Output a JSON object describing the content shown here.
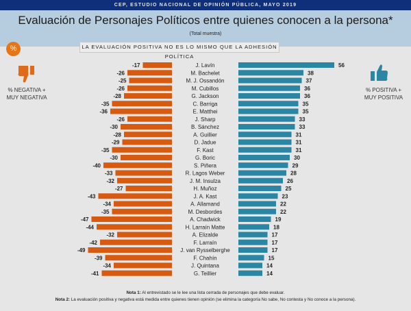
{
  "header": {
    "source": "CEP, ESTUDIO NACIONAL DE OPINIÓN PÚBLICA, MAYO 2019",
    "title": "Evaluación de Personajes Políticos entre quienes conocen a la persona*",
    "subtitle": "(Total muestra)",
    "banner": "LA EVALUACIÓN POSITIVA NO ES LO MISMO QUE LA ADHESIÓN POLÍTICA",
    "badge": "%"
  },
  "legend": {
    "negative_line1": "% NEGATIVA +",
    "negative_line2": "MUY NEGATIVA",
    "positive_line1": "% POSITIVA +",
    "positive_line2": "MUY POSITIVA",
    "negative_icon": "thumbs-down-icon",
    "positive_icon": "thumbs-up-icon"
  },
  "notes": {
    "note1_label": "Nota 1:",
    "note1_text": " Al entrevistado se le lee una lista cerrada de personajes que debe evaluar.",
    "note2_label": "Nota 2:",
    "note2_text": " La evaluación positiva y negativa está medida entre quienes tienen opinión (se elimina la categoría No sabe, No contesta y No conoce a la persona)."
  },
  "colors": {
    "negative": "#d65a10",
    "positive": "#2b86a4",
    "header_bar": "#0f2f7a",
    "header_bg": "#b6cde0"
  },
  "chart_data": {
    "type": "bar",
    "orientation": "horizontal-diverging",
    "title": "Evaluación de Personajes Políticos entre quienes conocen a la persona*",
    "categories": [
      "J. Lavín",
      "M. Bachelet",
      "M. J. Ossandón",
      "M. Cubillos",
      "G. Jackson",
      "C. Barriga",
      "E. Matthei",
      "J. Sharp",
      "B. Sánchez",
      "A. Guillier",
      "D. Jadue",
      "F. Kast",
      "G. Boric",
      "S. Piñera",
      "R. Lagos Weber",
      "J. M. Insulza",
      "H. Muñoz",
      "J. A. Kast",
      "A. Allamand",
      "M. Desbordes",
      "A. Chadwick",
      "H. Larraín Matte",
      "A. Elizalde",
      "F. Larraín",
      "J. van Rysselberghe",
      "F. Chahín",
      "J. Quintana",
      "G. Teillier"
    ],
    "series": [
      {
        "name": "% NEGATIVA + MUY NEGATIVA",
        "values": [
          -17,
          -26,
          -25,
          -26,
          -28,
          -35,
          -36,
          -26,
          -30,
          -28,
          -29,
          -35,
          -30,
          -40,
          -33,
          -32,
          -27,
          -43,
          -34,
          -35,
          -47,
          -44,
          -32,
          -42,
          -49,
          -39,
          -34,
          -41
        ]
      },
      {
        "name": "% POSITIVA + MUY POSITIVA",
        "values": [
          56,
          38,
          37,
          36,
          36,
          35,
          35,
          33,
          33,
          31,
          31,
          31,
          30,
          29,
          28,
          26,
          25,
          23,
          22,
          22,
          19,
          18,
          17,
          17,
          17,
          15,
          14,
          14
        ]
      }
    ],
    "xlim": [
      -60,
      60
    ],
    "grid": false,
    "legend": "left-and-right"
  }
}
